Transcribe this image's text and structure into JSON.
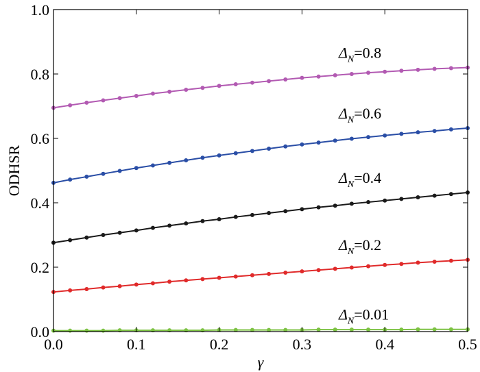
{
  "chart_data": {
    "type": "line",
    "xlabel": "γ",
    "ylabel": "ODHSR",
    "xlim": [
      0.0,
      0.5
    ],
    "ylim": [
      0.0,
      1.0
    ],
    "x_ticks": [
      "0.0",
      "0.1",
      "0.2",
      "0.3",
      "0.4",
      "0.5"
    ],
    "y_ticks": [
      "0.0",
      "0.2",
      "0.4",
      "0.6",
      "0.8",
      "1.0"
    ],
    "grid": false,
    "x": [
      0.0,
      0.02,
      0.04,
      0.06,
      0.08,
      0.1,
      0.12,
      0.14,
      0.16,
      0.18,
      0.2,
      0.22,
      0.24,
      0.26,
      0.28,
      0.3,
      0.32,
      0.34,
      0.36,
      0.38,
      0.4,
      0.42,
      0.44,
      0.46,
      0.48,
      0.5
    ],
    "series": [
      {
        "label_symbol": "Δ",
        "label_sub": "N",
        "label_value": "=0.8",
        "color": "#b25ab2",
        "values": [
          0.695,
          0.703,
          0.711,
          0.718,
          0.725,
          0.732,
          0.739,
          0.745,
          0.751,
          0.757,
          0.763,
          0.768,
          0.773,
          0.778,
          0.783,
          0.788,
          0.792,
          0.796,
          0.8,
          0.804,
          0.807,
          0.81,
          0.813,
          0.816,
          0.818,
          0.82
        ]
      },
      {
        "label_symbol": "Δ",
        "label_sub": "N",
        "label_value": "=0.6",
        "color": "#2a4ea6",
        "values": [
          0.462,
          0.472,
          0.481,
          0.49,
          0.499,
          0.508,
          0.516,
          0.524,
          0.532,
          0.54,
          0.547,
          0.554,
          0.561,
          0.568,
          0.575,
          0.581,
          0.587,
          0.593,
          0.599,
          0.604,
          0.609,
          0.614,
          0.619,
          0.623,
          0.628,
          0.632
        ]
      },
      {
        "label_symbol": "Δ",
        "label_sub": "N",
        "label_value": "=0.4",
        "color": "#1a1a1a",
        "values": [
          0.276,
          0.284,
          0.292,
          0.3,
          0.307,
          0.314,
          0.322,
          0.329,
          0.336,
          0.343,
          0.349,
          0.356,
          0.362,
          0.368,
          0.374,
          0.38,
          0.386,
          0.391,
          0.397,
          0.402,
          0.407,
          0.412,
          0.417,
          0.422,
          0.427,
          0.432
        ]
      },
      {
        "label_symbol": "Δ",
        "label_sub": "N",
        "label_value": "=0.2",
        "color": "#e02a2a",
        "values": [
          0.123,
          0.128,
          0.132,
          0.137,
          0.141,
          0.146,
          0.15,
          0.155,
          0.159,
          0.163,
          0.167,
          0.171,
          0.175,
          0.179,
          0.183,
          0.187,
          0.191,
          0.195,
          0.199,
          0.203,
          0.207,
          0.21,
          0.214,
          0.217,
          0.22,
          0.223
        ]
      },
      {
        "label_symbol": "Δ",
        "label_sub": "N",
        "label_value": "=0.01",
        "color": "#7cc242",
        "values": [
          0.003,
          0.003,
          0.003,
          0.003,
          0.004,
          0.004,
          0.004,
          0.004,
          0.004,
          0.004,
          0.005,
          0.005,
          0.005,
          0.005,
          0.005,
          0.005,
          0.006,
          0.006,
          0.006,
          0.006,
          0.006,
          0.006,
          0.007,
          0.007,
          0.007,
          0.007
        ]
      }
    ]
  }
}
